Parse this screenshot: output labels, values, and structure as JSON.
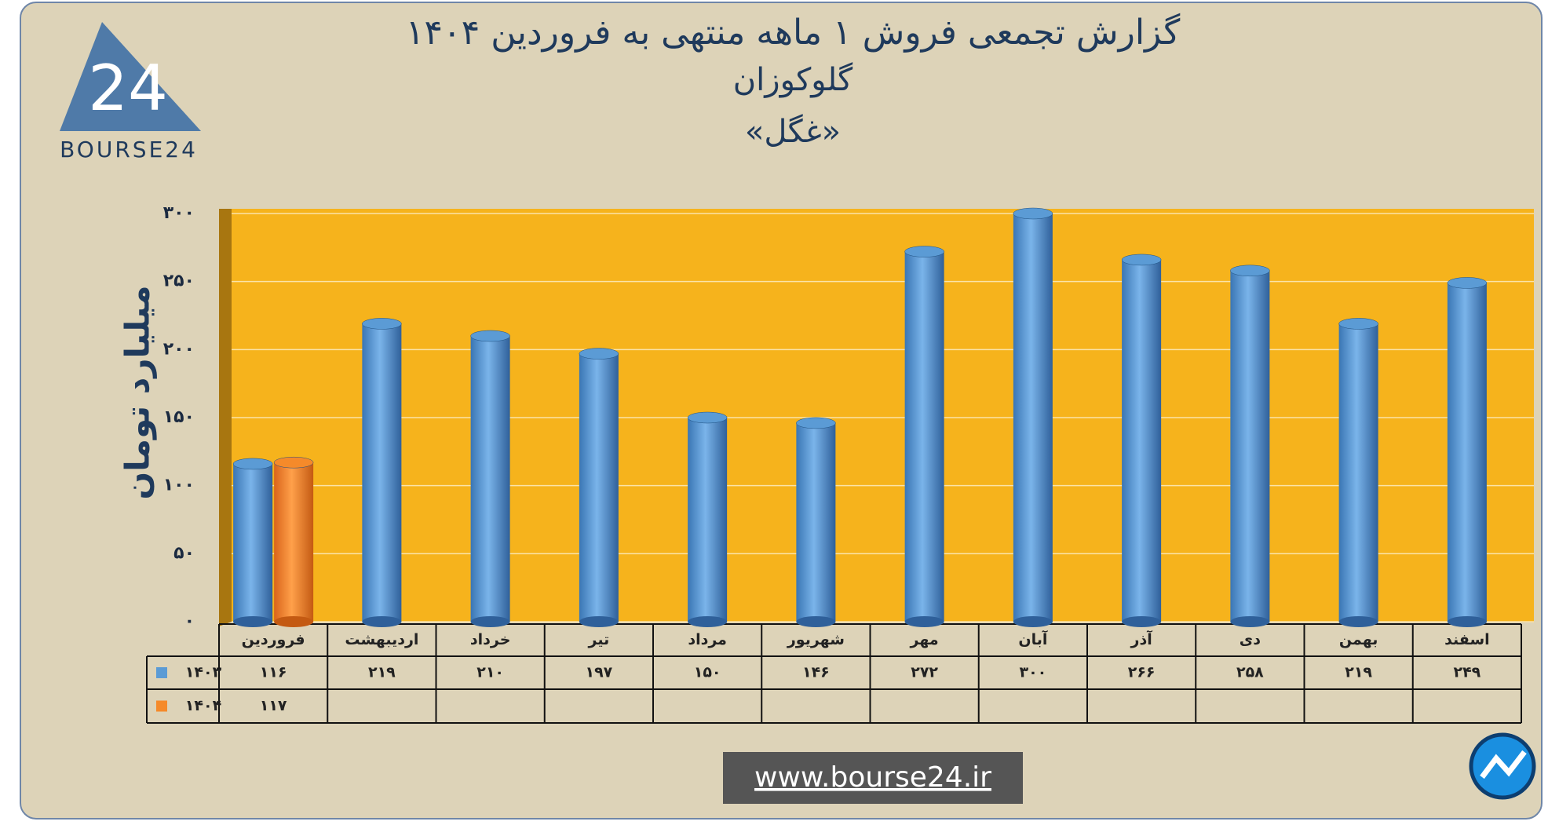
{
  "chart_data": {
    "type": "bar",
    "title": "گزارش تجمعی فروش ۱ ماهه منتهی به فروردین ۱۴۰۴",
    "subtitle": "گلوکوزان",
    "symbol": "«غگل»",
    "y_label": "میلیارد تومان",
    "categories": [
      "فروردین",
      "اردیبهشت",
      "خرداد",
      "تیر",
      "مرداد",
      "شهریور",
      "مهر",
      "آبان",
      "آذر",
      "دی",
      "بهمن",
      "اسفند"
    ],
    "series": [
      {
        "name": "۱۴۰۳",
        "color": "#5b9bd5",
        "values": [
          116,
          219,
          210,
          197,
          150,
          146,
          272,
          300,
          266,
          258,
          219,
          249
        ],
        "value_labels": [
          "۱۱۶",
          "۲۱۹",
          "۲۱۰",
          "۱۹۷",
          "۱۵۰",
          "۱۴۶",
          "۲۷۲",
          "۳۰۰",
          "۲۶۶",
          "۲۵۸",
          "۲۱۹",
          "۲۴۹"
        ]
      },
      {
        "name": "۱۴۰۴",
        "color": "#f58a2a",
        "values": [
          117,
          null,
          null,
          null,
          null,
          null,
          null,
          null,
          null,
          null,
          null,
          null
        ],
        "value_labels": [
          "۱۱۷",
          null,
          null,
          null,
          null,
          null,
          null,
          null,
          null,
          null,
          null,
          null
        ]
      }
    ],
    "ylim": [
      0,
      300
    ],
    "yticks": [
      {
        "value": 0,
        "label": "۰"
      },
      {
        "value": 50,
        "label": "۵۰"
      },
      {
        "value": 100,
        "label": "۱۰۰"
      },
      {
        "value": 150,
        "label": "۱۵۰"
      },
      {
        "value": 200,
        "label": "۲۰۰"
      },
      {
        "value": 250,
        "label": "۲۵۰"
      },
      {
        "value": 300,
        "label": "۳۰۰"
      }
    ],
    "grid": true
  },
  "logo": {
    "mark": "24",
    "text": "BOURSE24"
  },
  "footer": {
    "website": "www.bourse24.ir"
  }
}
